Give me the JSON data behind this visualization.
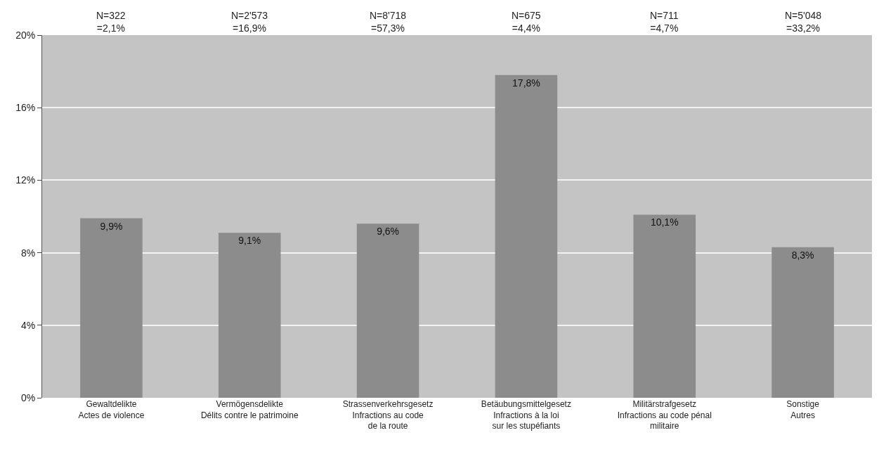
{
  "chart_data": {
    "type": "bar",
    "categories": [
      "Gewaltdelikte\nActes de violence",
      "Vermögensdelikte\nDélits contre le patrimoine",
      "Strassenverkehrsgesetz\nInfractions au code\nde la route",
      "Betäubungsmittelgesetz\nInfractions à la loi\nsur les stupéfiants",
      "Militärstrafgesetz\nInfractions au code pénal\nmilitaire",
      "Sonstige\nAutres"
    ],
    "values": [
      9.9,
      9.1,
      9.6,
      17.8,
      10.1,
      8.3
    ],
    "value_labels": [
      "9,9%",
      "9,1%",
      "9,6%",
      "17,8%",
      "10,1%",
      "8,3%"
    ],
    "color": "#8c8c8c",
    "ylim": [
      0,
      20
    ],
    "yticks": [
      {
        "value": 0,
        "label": "0%"
      },
      {
        "value": 4,
        "label": "4%"
      },
      {
        "value": 8,
        "label": "8%"
      },
      {
        "value": 12,
        "label": "12%"
      },
      {
        "value": 16,
        "label": "16%"
      },
      {
        "value": 20,
        "label": "20%"
      }
    ],
    "grid": "y",
    "legend": false,
    "annotations": [
      "N=322\n=2,1%",
      "N=2'573\n=16,9%",
      "N=8'718\n=57,3%",
      "N=675\n=4,4%",
      "N=711\n=4,7%",
      "N=5'048\n=33,2%"
    ]
  }
}
